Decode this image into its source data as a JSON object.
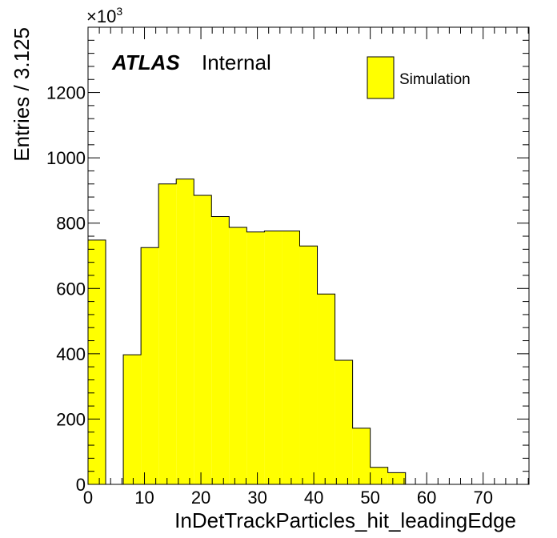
{
  "chart_data": {
    "type": "histogram",
    "xlabel": "InDetTrackParticles_hit_leadingEdge",
    "ylabel": "Entries / 3.125",
    "y_multiplier_label": "×10",
    "y_multiplier_exponent": "3",
    "xlim": [
      0,
      78.125
    ],
    "ylim": [
      0,
      1400
    ],
    "x_ticks": [
      0,
      10,
      20,
      30,
      40,
      50,
      60,
      70
    ],
    "y_ticks": [
      0,
      200,
      400,
      600,
      800,
      1000,
      1200
    ],
    "grid": false,
    "bin_width": 3.125,
    "bin_edges": [
      0,
      3.125,
      6.25,
      9.375,
      12.5,
      15.625,
      18.75,
      21.875,
      25,
      28.125,
      31.25,
      34.375,
      37.5,
      40.625,
      43.75,
      46.875,
      50,
      53.125,
      56.25,
      59.375,
      62.5,
      65.625,
      68.75,
      71.875,
      75,
      78.125
    ],
    "series": [
      {
        "name": "Simulation",
        "color": "#ffff00",
        "values": [
          748,
          0,
          397,
          725,
          920,
          935,
          885,
          820,
          787,
          773,
          776,
          776,
          730,
          583,
          380,
          172,
          52,
          36,
          0,
          0,
          0,
          0,
          0,
          0,
          0
        ]
      }
    ],
    "legend_position": "top-right",
    "atlas_label": "ATLAS",
    "atlas_sublabel": "Internal"
  }
}
